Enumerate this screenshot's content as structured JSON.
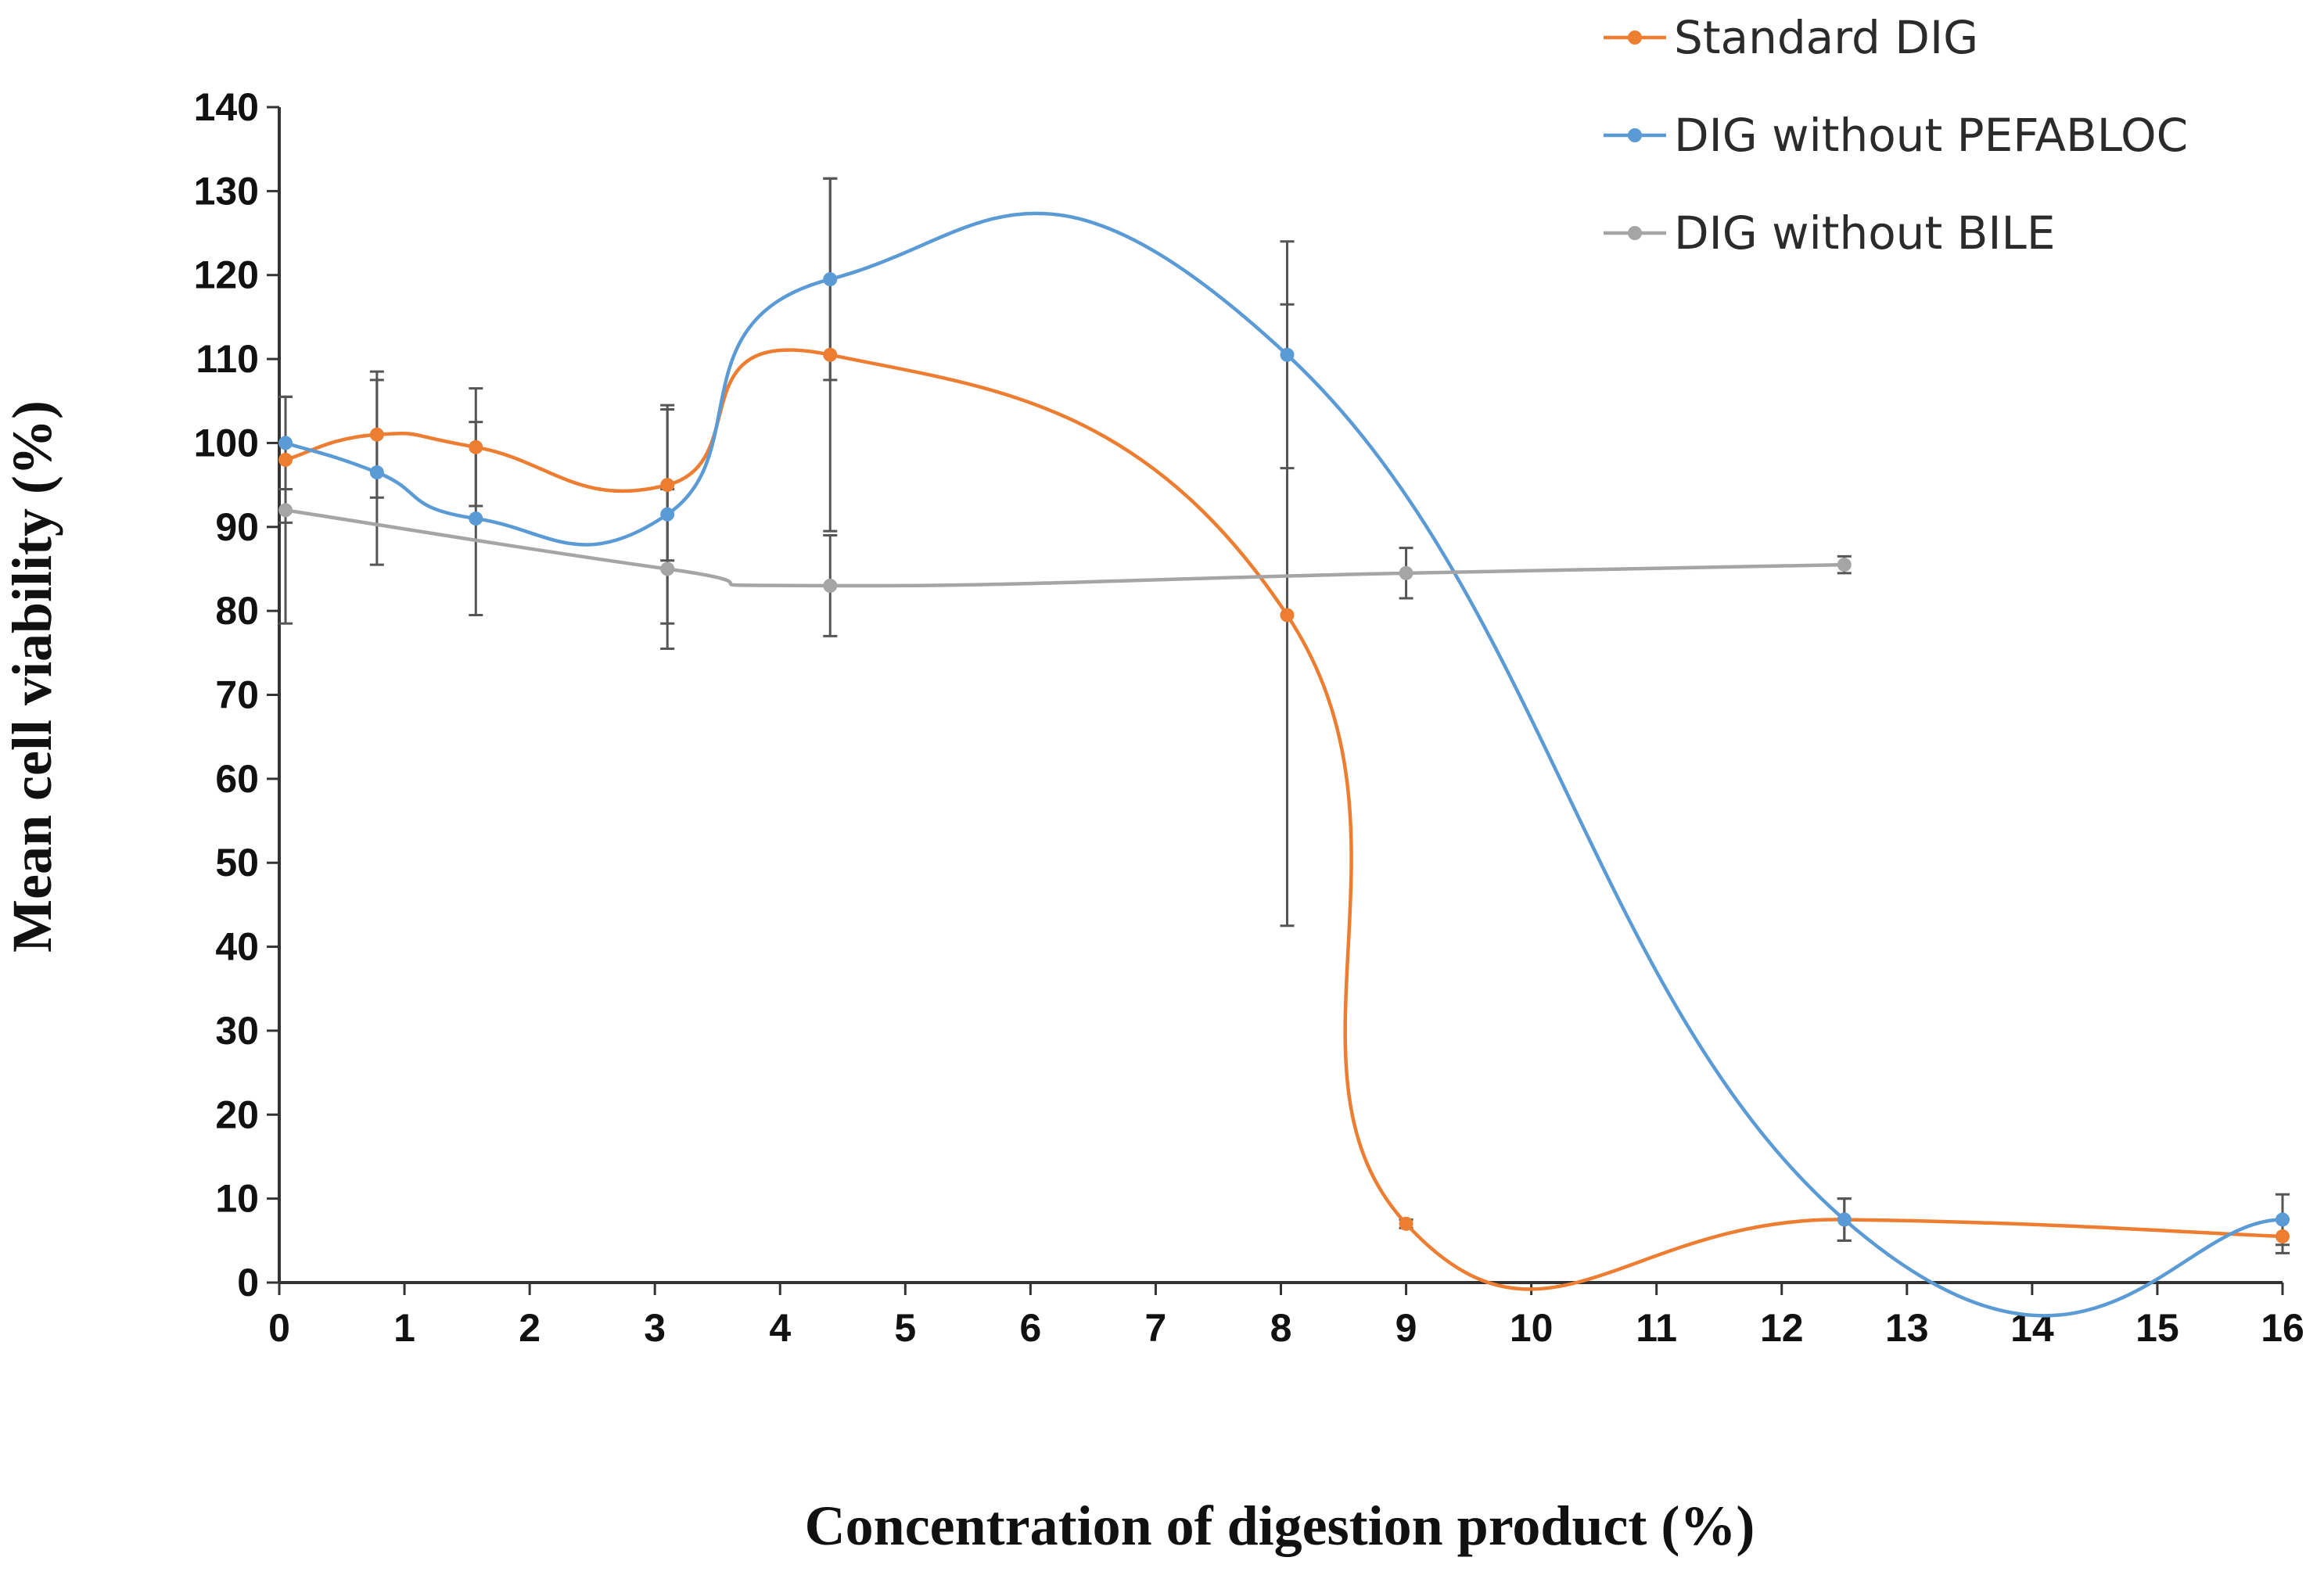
{
  "chart_data": {
    "type": "line",
    "title": "",
    "xlabel": "Concentration of digestion product (%)",
    "ylabel": "Mean cell viability (%)",
    "xlim": [
      0,
      16
    ],
    "ylim": [
      0,
      140
    ],
    "x_ticks": [
      "0",
      "1",
      "2",
      "3",
      "4",
      "5",
      "6",
      "7",
      "8",
      "9",
      "10",
      "11",
      "12",
      "13",
      "14",
      "15",
      "16"
    ],
    "y_ticks": [
      "0",
      "10",
      "20",
      "30",
      "40",
      "50",
      "60",
      "70",
      "80",
      "90",
      "100",
      "110",
      "120",
      "130",
      "140"
    ],
    "legend_position": "top-right",
    "series": [
      {
        "name": "Standard DIG",
        "color": "#ED7D31",
        "x": [
          0.05,
          0.78,
          1.57,
          3.1,
          4.4,
          8.05,
          9.0,
          12.5,
          16.0
        ],
        "y": [
          98,
          101,
          99.5,
          95,
          110.5,
          79.5,
          7,
          7.5,
          5.5
        ],
        "err": [
          7.5,
          7.5,
          7,
          9,
          21,
          37,
          0.5,
          2.5,
          2
        ]
      },
      {
        "name": "DIG without PEFABLOC",
        "color": "#5B9BD5",
        "x": [
          0.05,
          0.78,
          1.57,
          3.1,
          4.4,
          8.05,
          12.5,
          16.0
        ],
        "y": [
          100,
          96.5,
          91,
          91.5,
          119.5,
          110.5,
          7.5,
          7.5
        ],
        "err": [
          5.5,
          11,
          11.5,
          13,
          12,
          13.5,
          2.5,
          3
        ]
      },
      {
        "name": "DIG without BILE",
        "color": "#A5A5A5",
        "x": [
          0.05,
          3.1,
          4.4,
          9.0,
          12.5
        ],
        "y": [
          92,
          85,
          83,
          84.5,
          85.5
        ],
        "err": [
          13.5,
          9.5,
          6,
          3,
          1
        ]
      }
    ]
  }
}
